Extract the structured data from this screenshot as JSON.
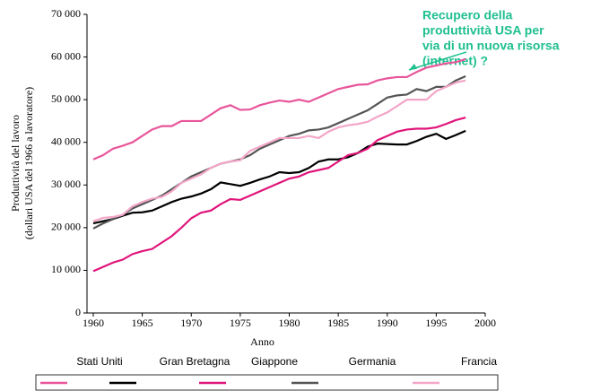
{
  "chart_data": {
    "type": "line",
    "y_label": [
      "Produttività del lavoro",
      "(dollari USA del 1966 a lavoratore)"
    ],
    "x_label": "Anno",
    "annotation": [
      "Recupero della",
      "produttività USA per",
      "via di un nuova risorsa",
      "(internet) ?"
    ],
    "x": [
      1960,
      1961,
      1962,
      1963,
      1964,
      1965,
      1966,
      1967,
      1968,
      1969,
      1970,
      1971,
      1972,
      1973,
      1974,
      1975,
      1976,
      1977,
      1978,
      1979,
      1980,
      1981,
      1982,
      1983,
      1984,
      1985,
      1986,
      1987,
      1988,
      1989,
      1990,
      1991,
      1992,
      1993,
      1994,
      1995,
      1996,
      1997,
      1998
    ],
    "xlim": [
      1960,
      2000
    ],
    "xticks": [
      1960,
      1965,
      1970,
      1975,
      1980,
      1985,
      1990,
      1995,
      2000
    ],
    "ylim": [
      0,
      70000
    ],
    "yticks": [
      0,
      {
        "value": 10000,
        "label": "10 000"
      },
      {
        "value": 20000,
        "label": "20 000"
      },
      {
        "value": 30000,
        "label": "30 000"
      },
      {
        "value": 40000,
        "label": "40 000"
      },
      {
        "value": 50000,
        "label": "50 000"
      },
      {
        "value": 60000,
        "label": "60 000"
      },
      {
        "value": 70000,
        "label": "70 000"
      }
    ],
    "series": [
      {
        "name": "Stati Uniti",
        "color": "#e8559a",
        "values": [
          36000,
          37000,
          38500,
          39200,
          40000,
          41500,
          43000,
          43800,
          43800,
          45000,
          45000,
          45000,
          46500,
          48000,
          48700,
          47600,
          47700,
          48700,
          49300,
          49800,
          49500,
          50000,
          49500,
          50500,
          51500,
          52500,
          53000,
          53500,
          53600,
          54500,
          55000,
          55300,
          55300,
          56500,
          57500,
          58000,
          58500,
          58800,
          59500
        ]
      },
      {
        "name": "Gran Bretagna",
        "color": "#000000",
        "values": [
          21000,
          21500,
          22000,
          22800,
          23500,
          23600,
          24000,
          25000,
          26000,
          26800,
          27300,
          28000,
          29000,
          30600,
          30200,
          29800,
          30500,
          31300,
          32000,
          33000,
          32800,
          33000,
          34000,
          35500,
          36000,
          36000,
          36500,
          37500,
          39000,
          39700,
          39600,
          39500,
          39500,
          40300,
          41300,
          42000,
          40800,
          41700,
          42700
        ]
      },
      {
        "name": "Giappone",
        "color": "#e0147a",
        "values": [
          9800,
          10800,
          11800,
          12500,
          13800,
          14500,
          15000,
          16500,
          18000,
          20000,
          22200,
          23500,
          24000,
          25500,
          26700,
          26500,
          27500,
          28500,
          29500,
          30500,
          31500,
          32000,
          33000,
          33500,
          34000,
          35500,
          37000,
          37500,
          38500,
          40500,
          41500,
          42500,
          43000,
          43200,
          43200,
          43500,
          44300,
          45200,
          45800
        ]
      },
      {
        "name": "Germania",
        "color": "#555555",
        "values": [
          19800,
          21000,
          22000,
          23000,
          24500,
          25500,
          26500,
          27500,
          29000,
          30500,
          32000,
          33000,
          34000,
          35000,
          35500,
          36000,
          37000,
          38500,
          39500,
          40500,
          41500,
          42000,
          42800,
          43000,
          43500,
          44500,
          45500,
          46500,
          47500,
          49000,
          50500,
          51000,
          51200,
          52500,
          52000,
          53000,
          53000,
          54500,
          55500
        ]
      },
      {
        "name": "Francia",
        "color": "#f4a6c8",
        "values": [
          21500,
          22300,
          22500,
          23000,
          25000,
          26000,
          26800,
          27200,
          28500,
          30500,
          31500,
          32500,
          34000,
          35000,
          35500,
          35800,
          38000,
          39000,
          40000,
          41000,
          41000,
          41000,
          41500,
          41000,
          42500,
          43500,
          44000,
          44300,
          44800,
          46000,
          47000,
          48500,
          50000,
          50000,
          50000,
          52000,
          53000,
          54000,
          54500
        ]
      }
    ]
  }
}
